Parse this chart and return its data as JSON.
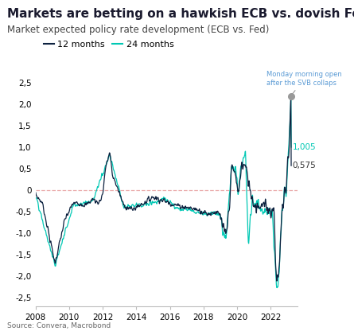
{
  "title": "Markets are betting on a hawkish ECB vs. dovish Fed",
  "subtitle": "Market expected policy rate development (ECB vs. Fed)",
  "source": "Source: Convera, Macrobond",
  "legend_12m": "12 months",
  "legend_24m": "24 months",
  "color_12m": "#0d2240",
  "color_24m": "#00c8b4",
  "color_zero_line": "#e8a0a0",
  "annotation_text": "Monday morning open\nafter the SVB collaps",
  "annotation_color": "#5b9bd5",
  "label_24m_value": "1,005",
  "label_12m_value": "0,575",
  "ylim": [
    -2.7,
    2.7
  ],
  "yticks": [
    -2.5,
    -2.0,
    -1.5,
    -1.0,
    -0.5,
    0.0,
    0.5,
    1.0,
    1.5,
    2.0,
    2.5
  ],
  "background_color": "#ffffff",
  "title_fontsize": 11,
  "subtitle_fontsize": 8.5,
  "axis_fontsize": 7.5
}
